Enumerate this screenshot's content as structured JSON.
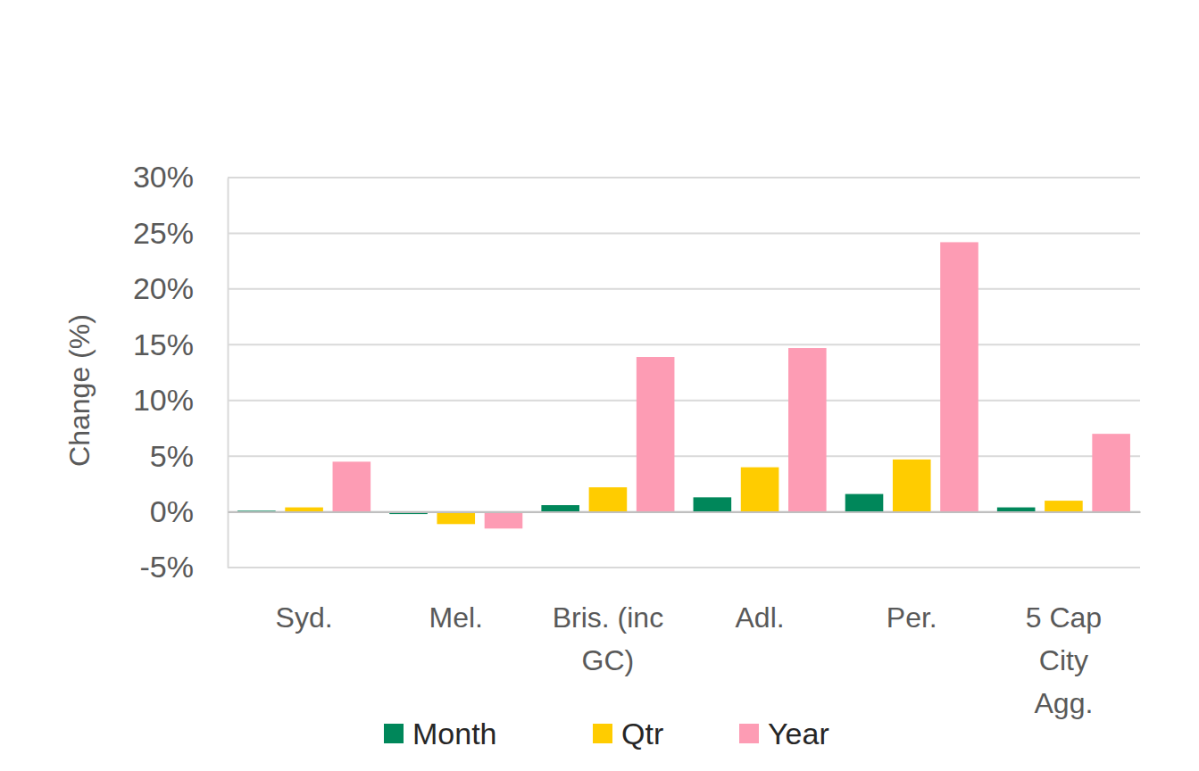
{
  "chart_data": {
    "type": "bar",
    "y_label": "Change (%)",
    "categories": [
      "Syd.",
      "Mel.",
      "Bris. (inc\nGC)",
      "Adl.",
      "Per.",
      "5 Cap\nCity\nAgg."
    ],
    "series": [
      {
        "name": "Month",
        "color": "#00875a",
        "values": [
          0.1,
          -0.2,
          0.6,
          1.3,
          1.6,
          0.4
        ]
      },
      {
        "name": "Qtr",
        "color": "#ffcc00",
        "values": [
          0.4,
          -1.1,
          2.2,
          4.0,
          4.7,
          1.0
        ]
      },
      {
        "name": "Year",
        "color": "#fd9cb4",
        "values": [
          4.5,
          -1.5,
          13.9,
          14.7,
          24.2,
          7.0
        ]
      }
    ],
    "ylim": [
      -5,
      30
    ],
    "yticks": [
      {
        "value": -5,
        "label": "-5%"
      },
      {
        "value": 0,
        "label": "0%"
      },
      {
        "value": 5,
        "label": "5%"
      },
      {
        "value": 10,
        "label": "10%"
      },
      {
        "value": 15,
        "label": "15%"
      },
      {
        "value": 20,
        "label": "20%"
      },
      {
        "value": 25,
        "label": "25%"
      },
      {
        "value": 30,
        "label": "30%"
      }
    ],
    "grid": true,
    "legend": "bottom"
  }
}
